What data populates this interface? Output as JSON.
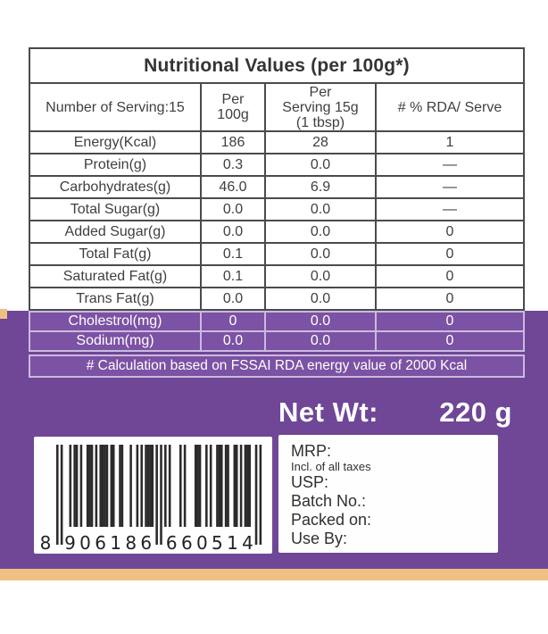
{
  "nutrition_table": {
    "title": "Nutritional Values (per 100g*)",
    "columns": [
      "Number of Serving:15",
      "Per\n100g",
      "Per\nServing 15g\n(1 tbsp)",
      "# % RDA/ Serve"
    ],
    "rows": [
      {
        "label": "Energy(Kcal)",
        "per_100g": "186",
        "per_serving": "28",
        "rda": "1",
        "highlight": false
      },
      {
        "label": "Protein(g)",
        "per_100g": "0.3",
        "per_serving": "0.0",
        "rda": "—",
        "highlight": false
      },
      {
        "label": "Carbohydrates(g)",
        "per_100g": "46.0",
        "per_serving": "6.9",
        "rda": "—",
        "highlight": false
      },
      {
        "label": "Total Sugar(g)",
        "per_100g": "0.0",
        "per_serving": "0.0",
        "rda": "—",
        "highlight": false
      },
      {
        "label": "Added Sugar(g)",
        "per_100g": "0.0",
        "per_serving": "0.0",
        "rda": "0",
        "highlight": false
      },
      {
        "label": "Total Fat(g)",
        "per_100g": "0.1",
        "per_serving": "0.0",
        "rda": "0",
        "highlight": false
      },
      {
        "label": "Saturated Fat(g)",
        "per_100g": "0.1",
        "per_serving": "0.0",
        "rda": "0",
        "highlight": false
      },
      {
        "label": "Trans Fat(g)",
        "per_100g": "0.0",
        "per_serving": "0.0",
        "rda": "0",
        "highlight": false
      },
      {
        "label": "Cholestrol(mg)",
        "per_100g": "0",
        "per_serving": "0.0",
        "rda": "0",
        "highlight": true
      },
      {
        "label": "Sodium(mg)",
        "per_100g": "0.0",
        "per_serving": "0.0",
        "rda": "0",
        "highlight": true
      }
    ],
    "footnote": "# Calculation based on FSSAI RDA energy value of 2000 Kcal"
  },
  "net_weight": {
    "label": "Net Wt:",
    "value": "220 g"
  },
  "barcode": {
    "digits": "8906186660514"
  },
  "product_info": {
    "mrp_label": "MRP:",
    "tax_note": "Incl. of all taxes",
    "usp_label": "USP:",
    "batch_label": "Batch No.:",
    "packed_label": "Packed on:",
    "use_by_label": "Use By:"
  },
  "colors": {
    "purple": "#6f4796",
    "purple_cell": "#7c52a4",
    "tan": "#eec183",
    "border_dark": "#4b4b4b",
    "border_light": "#cbbade",
    "text_dark": "#3f3f3f",
    "bar": "#2b2b2b"
  }
}
